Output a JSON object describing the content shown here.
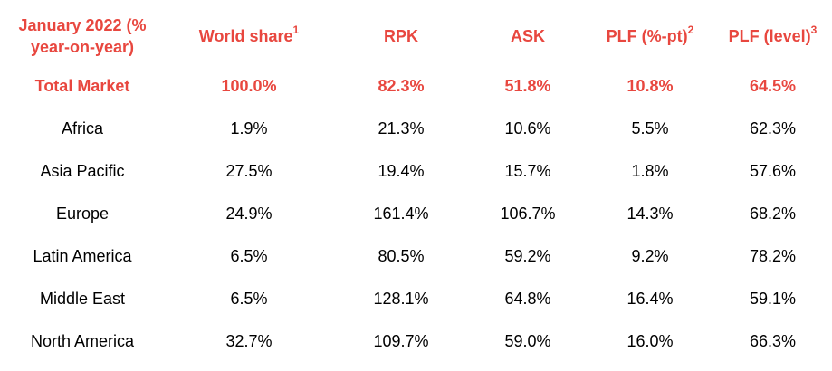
{
  "table": {
    "headers": [
      {
        "text": "January 2022 (% year-on-year)",
        "sup": ""
      },
      {
        "text": "World share",
        "sup": "1"
      },
      {
        "text": "RPK",
        "sup": ""
      },
      {
        "text": "ASK",
        "sup": ""
      },
      {
        "text": "PLF (%-pt)",
        "sup": "2"
      },
      {
        "text": "PLF (level)",
        "sup": "3"
      }
    ],
    "total_row": [
      "Total Market",
      "100.0%",
      "82.3%",
      "51.8%",
      "10.8%",
      "64.5%"
    ],
    "rows": [
      [
        "Africa",
        "1.9%",
        "21.3%",
        "10.6%",
        "5.5%",
        "62.3%"
      ],
      [
        "Asia Pacific",
        "27.5%",
        "19.4%",
        "15.7%",
        "1.8%",
        "57.6%"
      ],
      [
        "Europe",
        "24.9%",
        "161.4%",
        "106.7%",
        "14.3%",
        "68.2%"
      ],
      [
        "Latin America",
        "6.5%",
        "80.5%",
        "59.2%",
        "9.2%",
        "78.2%"
      ],
      [
        "Middle East",
        "6.5%",
        "128.1%",
        "64.8%",
        "16.4%",
        "59.1%"
      ],
      [
        "North America",
        "32.7%",
        "109.7%",
        "59.0%",
        "16.0%",
        "66.3%"
      ]
    ]
  },
  "colors": {
    "accent": "#e8473f",
    "text": "#000000",
    "background": "#ffffff"
  }
}
